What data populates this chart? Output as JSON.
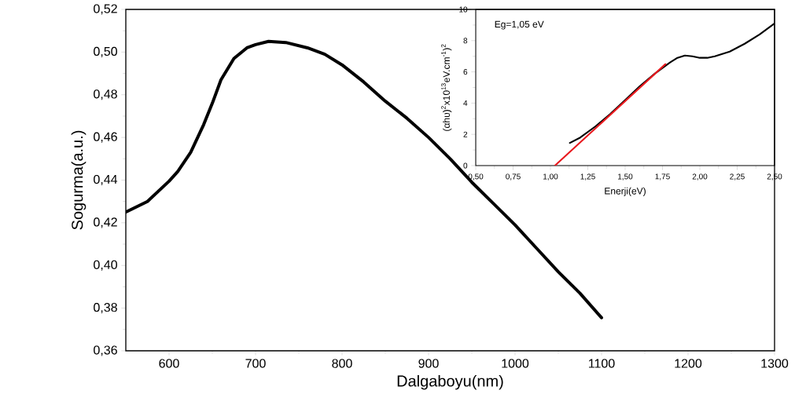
{
  "chart_data": [
    {
      "type": "line",
      "xlabel": "Dalgaboyu(nm)",
      "ylabel": "Sogurma(a.u.)",
      "xlim": [
        550,
        1300
      ],
      "ylim": [
        0.36,
        0.52
      ],
      "xticks": [
        600,
        700,
        800,
        900,
        1000,
        1100,
        1200,
        1300
      ],
      "yticks": [
        {
          "value": 0.36,
          "label": "0,36"
        },
        {
          "value": 0.38,
          "label": "0,38"
        },
        {
          "value": 0.4,
          "label": "0,40"
        },
        {
          "value": 0.42,
          "label": "0,42"
        },
        {
          "value": 0.44,
          "label": "0,44"
        },
        {
          "value": 0.46,
          "label": "0,46"
        },
        {
          "value": 0.48,
          "label": "0,48"
        },
        {
          "value": 0.5,
          "label": "0,50"
        },
        {
          "value": 0.52,
          "label": "0,52"
        }
      ],
      "series": [
        {
          "color": "#000000",
          "x": [
            550,
            575,
            600,
            610,
            625,
            640,
            650,
            660,
            675,
            690,
            700,
            715,
            735,
            760,
            780,
            800,
            825,
            850,
            875,
            900,
            925,
            950,
            975,
            1000,
            1025,
            1050,
            1075,
            1100
          ],
          "values": [
            0.425,
            0.43,
            0.4395,
            0.444,
            0.453,
            0.466,
            0.476,
            0.487,
            0.497,
            0.502,
            0.5035,
            0.505,
            0.5045,
            0.502,
            0.499,
            0.494,
            0.486,
            0.477,
            0.469,
            0.46,
            0.45,
            0.439,
            0.429,
            0.419,
            0.408,
            0.397,
            0.387,
            0.3755
          ]
        }
      ]
    },
    {
      "type": "line",
      "xlabel": "Enerji(eV)",
      "ylabel": "(αhυ)$^{2}$x10$^{13}$eV.cm$^{-1}$)$^{2}$",
      "xlim": [
        0.5,
        2.5
      ],
      "ylim": [
        0,
        10
      ],
      "xticks": [
        {
          "value": 0.5,
          "label": "0,50"
        },
        {
          "value": 0.75,
          "label": "0,75"
        },
        {
          "value": 1.0,
          "label": "1,00"
        },
        {
          "value": 1.25,
          "label": "1,25"
        },
        {
          "value": 1.5,
          "label": "1,50"
        },
        {
          "value": 1.75,
          "label": "1,75"
        },
        {
          "value": 2.0,
          "label": "2,00"
        },
        {
          "value": 2.25,
          "label": "2,25"
        },
        {
          "value": 2.5,
          "label": "2,50"
        }
      ],
      "yticks": [
        0,
        2,
        4,
        6,
        8,
        10
      ],
      "annotations": [
        "Eg=1,05 eV"
      ],
      "series": [
        {
          "color": "#000000",
          "x": [
            1.13,
            1.2,
            1.3,
            1.4,
            1.5,
            1.6,
            1.7,
            1.8,
            1.85,
            1.9,
            1.95,
            2.0,
            2.05,
            2.1,
            2.2,
            2.3,
            2.4,
            2.5
          ],
          "values": [
            1.45,
            1.8,
            2.5,
            3.3,
            4.2,
            5.1,
            5.9,
            6.6,
            6.9,
            7.05,
            7.0,
            6.9,
            6.9,
            7.0,
            7.3,
            7.8,
            8.4,
            9.1
          ]
        },
        {
          "color": "#e8191e",
          "x": [
            1.03,
            1.77
          ],
          "values": [
            0,
            6.5
          ]
        }
      ]
    }
  ]
}
